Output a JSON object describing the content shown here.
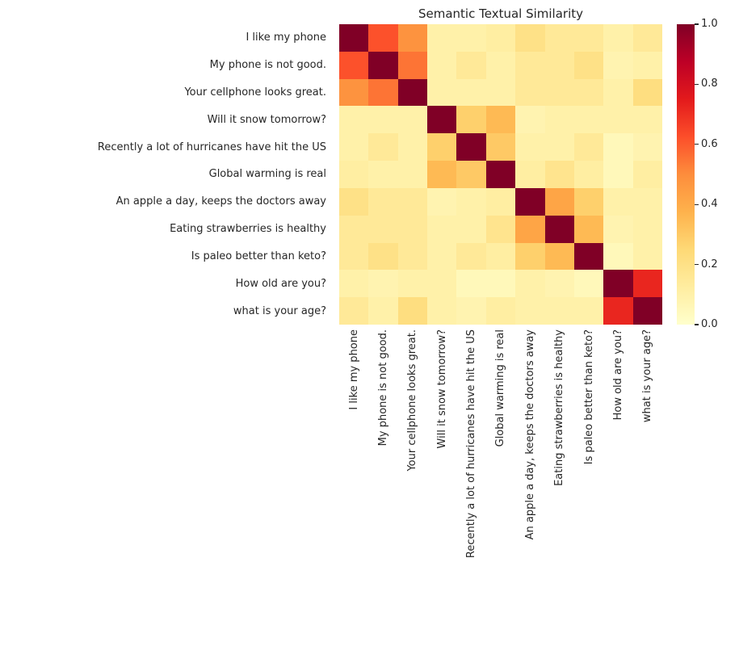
{
  "chart_data": {
    "type": "heatmap",
    "title": "Semantic Textual Similarity",
    "labels": [
      "I like my phone",
      "My phone is not good.",
      "Your cellphone looks great.",
      "Will it snow tomorrow?",
      "Recently a lot of hurricanes have hit the US",
      "Global warming is real",
      "An apple a day, keeps the doctors away",
      "Eating strawberries is healthy",
      "Is paleo better than keto?",
      "How old are you?",
      "what is your age?"
    ],
    "matrix": [
      [
        1.0,
        0.62,
        0.48,
        0.1,
        0.1,
        0.12,
        0.2,
        0.15,
        0.15,
        0.1,
        0.15
      ],
      [
        0.62,
        1.0,
        0.55,
        0.1,
        0.15,
        0.1,
        0.15,
        0.15,
        0.2,
        0.08,
        0.1
      ],
      [
        0.48,
        0.55,
        1.0,
        0.1,
        0.1,
        0.1,
        0.15,
        0.15,
        0.15,
        0.1,
        0.22
      ],
      [
        0.1,
        0.1,
        0.1,
        1.0,
        0.28,
        0.35,
        0.08,
        0.1,
        0.1,
        0.1,
        0.1
      ],
      [
        0.1,
        0.15,
        0.1,
        0.28,
        1.0,
        0.3,
        0.1,
        0.1,
        0.15,
        0.05,
        0.08
      ],
      [
        0.12,
        0.1,
        0.1,
        0.35,
        0.3,
        1.0,
        0.12,
        0.18,
        0.12,
        0.05,
        0.12
      ],
      [
        0.2,
        0.15,
        0.15,
        0.08,
        0.1,
        0.12,
        1.0,
        0.42,
        0.28,
        0.1,
        0.1
      ],
      [
        0.15,
        0.15,
        0.15,
        0.1,
        0.1,
        0.18,
        0.42,
        1.0,
        0.35,
        0.08,
        0.1
      ],
      [
        0.15,
        0.2,
        0.15,
        0.1,
        0.15,
        0.12,
        0.28,
        0.35,
        1.0,
        0.05,
        0.1
      ],
      [
        0.1,
        0.08,
        0.1,
        0.1,
        0.05,
        0.05,
        0.1,
        0.08,
        0.05,
        1.0,
        0.72
      ],
      [
        0.15,
        0.1,
        0.22,
        0.1,
        0.08,
        0.12,
        0.1,
        0.1,
        0.1,
        0.72,
        1.0
      ]
    ],
    "vmin": 0.0,
    "vmax": 1.0,
    "grid": false,
    "colormap": {
      "stops": [
        {
          "t": 0.0,
          "color": "#ffffcc"
        },
        {
          "t": 0.125,
          "color": "#ffeda0"
        },
        {
          "t": 0.25,
          "color": "#fed976"
        },
        {
          "t": 0.375,
          "color": "#feb24c"
        },
        {
          "t": 0.5,
          "color": "#fd8d3c"
        },
        {
          "t": 0.625,
          "color": "#fc4e2a"
        },
        {
          "t": 0.75,
          "color": "#e31a1c"
        },
        {
          "t": 0.875,
          "color": "#bd0026"
        },
        {
          "t": 1.0,
          "color": "#800026"
        }
      ]
    },
    "colorbar": {
      "position": "right",
      "ticks": [
        "0.0",
        "0.2",
        "0.4",
        "0.6",
        "0.8",
        "1.0"
      ]
    },
    "text_color": "#262626",
    "background_color": "#ffffff"
  }
}
